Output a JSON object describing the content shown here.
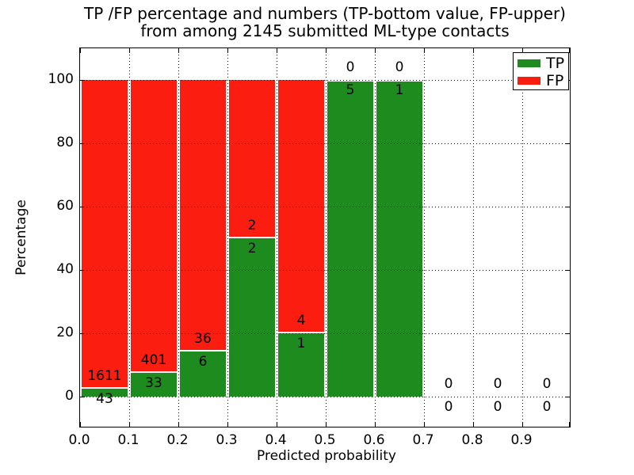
{
  "title": {
    "line1": "TP /FP percentage and numbers (TP-bottom value, FP-upper)",
    "line2": "from among 2145 submitted ML-type contacts"
  },
  "axes": {
    "xlabel": "Predicted probability",
    "ylabel": "Percentage",
    "xticks": [
      "0.0",
      "0.1",
      "0.2",
      "0.3",
      "0.4",
      "0.5",
      "0.6",
      "0.7",
      "0.8",
      "0.9"
    ],
    "yticks": [
      "0",
      "20",
      "40",
      "60",
      "80",
      "100"
    ]
  },
  "legend": [
    {
      "label": "TP",
      "color": "#1e8b1e"
    },
    {
      "label": "FP",
      "color": "#fb1d10"
    }
  ],
  "colors": {
    "tp": "#1e8b1e",
    "fp": "#fb1d10",
    "background": "#ffffff",
    "grid": "#000000"
  },
  "chart_data": {
    "type": "bar",
    "stacked": true,
    "title": "TP /FP percentage and numbers (TP-bottom value, FP-upper) from among 2145 submitted ML-type contacts",
    "xlabel": "Predicted probability",
    "ylabel": "Percentage",
    "xlim": [
      0.0,
      1.0
    ],
    "ylim": [
      -10,
      110
    ],
    "grid": "dotted, both axes",
    "legend_position": "upper right",
    "total_contacts": 2145,
    "categories": [
      "0.0-0.1",
      "0.1-0.2",
      "0.2-0.3",
      "0.3-0.4",
      "0.4-0.5",
      "0.5-0.6",
      "0.6-0.7",
      "0.7-0.8",
      "0.8-0.9",
      "0.9-1.0"
    ],
    "series": [
      {
        "name": "TP",
        "color": "#1e8b1e",
        "values": [
          43,
          33,
          6,
          2,
          1,
          5,
          1,
          0,
          0,
          0
        ]
      },
      {
        "name": "FP",
        "color": "#fb1d10",
        "values": [
          1611,
          401,
          36,
          2,
          4,
          0,
          0,
          0,
          0,
          0
        ]
      }
    ],
    "tp_percent": [
      2.6,
      7.6,
      14.3,
      50.0,
      20.0,
      100.0,
      100.0,
      null,
      null,
      null
    ],
    "note": "Bar green height = TP/(TP+FP)*100, red fills to 100%. FP count printed above the TP/FP boundary, TP count below it. Empty bins show 0 above and below the 0% line."
  }
}
